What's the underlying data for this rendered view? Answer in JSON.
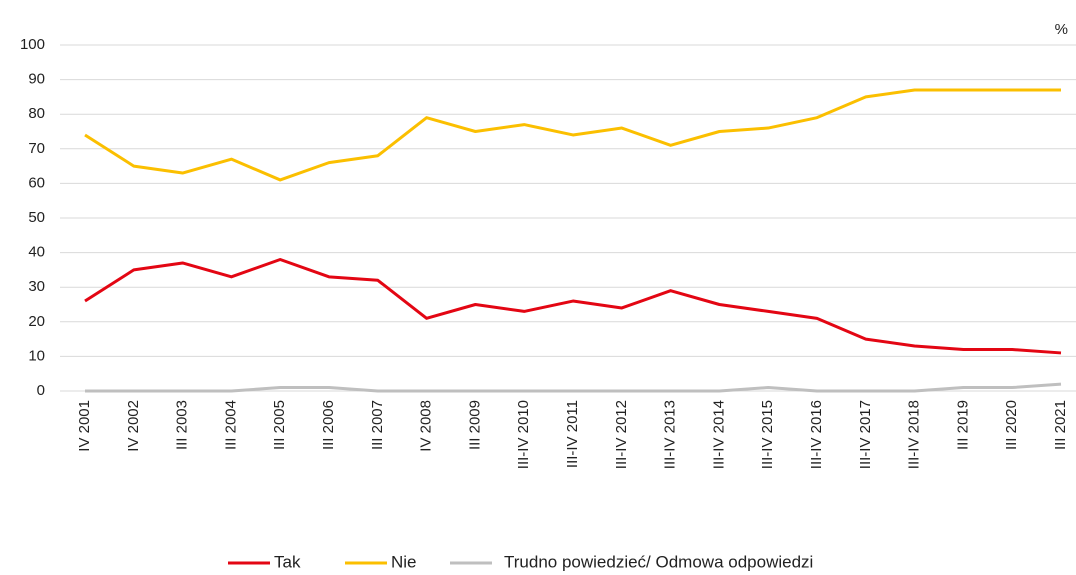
{
  "chart_data": {
    "type": "line",
    "unit": "%",
    "categories": [
      "IV 2001",
      "IV 2002",
      "III 2003",
      "III 2004",
      "III 2005",
      "III 2006",
      "III 2007",
      "IV 2008",
      "III 2009",
      "III-IV 2010",
      "III-IV 2011",
      "III-IV 2012",
      "III-IV 2013",
      "III-IV 2014",
      "III-IV 2015",
      "III-IV 2016",
      "III-IV 2017",
      "III-IV 2018",
      "III 2019",
      "III 2020",
      "III 2021"
    ],
    "series": [
      {
        "name": "Tak",
        "color": "#e30613",
        "values": [
          26,
          35,
          37,
          33,
          38,
          33,
          32,
          21,
          25,
          23,
          26,
          24,
          29,
          25,
          23,
          21,
          15,
          13,
          12,
          12,
          11
        ]
      },
      {
        "name": "Nie",
        "color": "#fbbf00",
        "values": [
          74,
          65,
          63,
          67,
          61,
          66,
          68,
          79,
          75,
          77,
          74,
          76,
          71,
          75,
          76,
          79,
          85,
          87,
          87,
          87,
          87
        ]
      },
      {
        "name": "Trudno powiedzieć/ Odmowa odpowiedzi",
        "color": "#bfbfbf",
        "values": [
          0,
          0,
          0,
          0,
          1,
          1,
          0,
          0,
          0,
          0,
          0,
          0,
          0,
          0,
          1,
          0,
          0,
          0,
          1,
          1,
          2
        ]
      }
    ],
    "ylim": [
      0,
      100
    ],
    "yticks": [
      0,
      10,
      20,
      30,
      40,
      50,
      60,
      70,
      80,
      90,
      100
    ],
    "grid": true,
    "legend": "bottom"
  }
}
